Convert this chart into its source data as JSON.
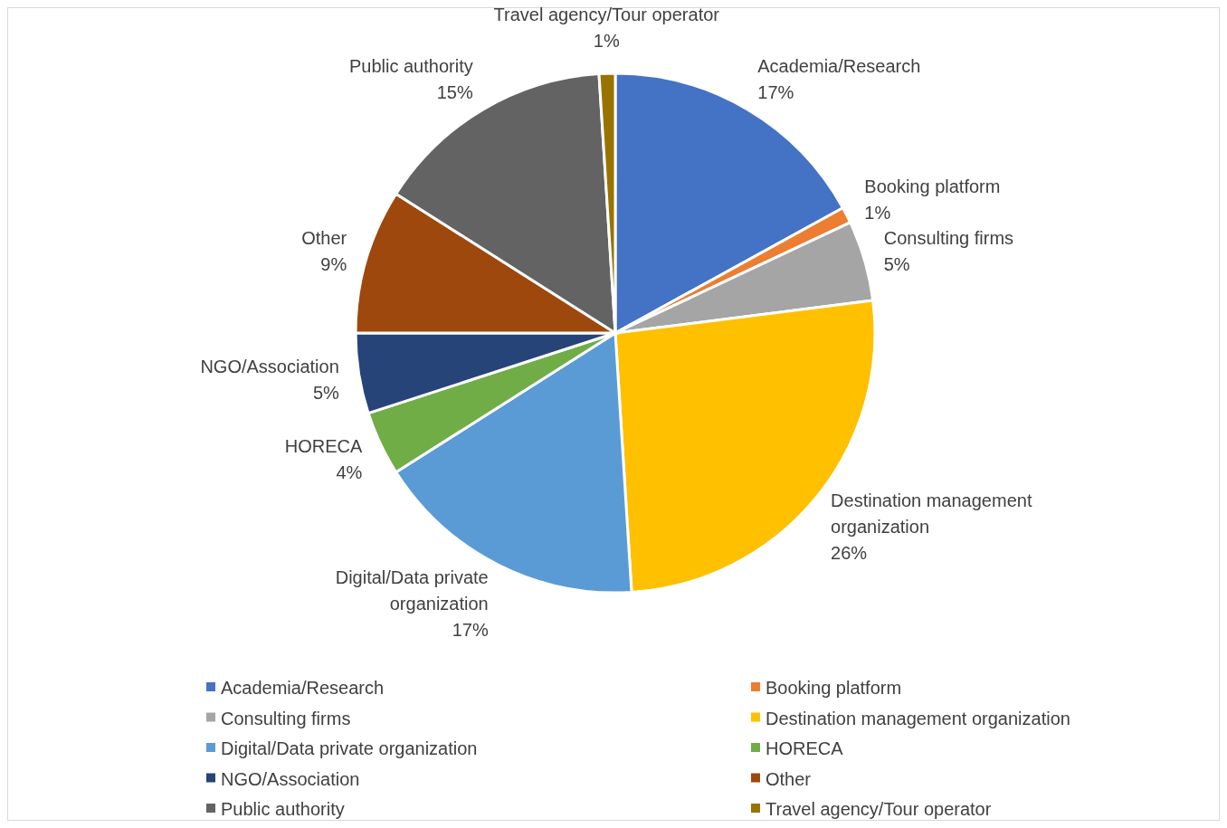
{
  "chart_data": {
    "type": "pie",
    "categories": [
      "Academia/Research",
      "Booking platform",
      "Consulting firms",
      "Destination management organization",
      "Digital/Data private organization",
      "HORECA",
      "NGO/Association",
      "Other",
      "Public authority",
      "Travel agency/Tour operator"
    ],
    "values": [
      17,
      1,
      5,
      26,
      17,
      4,
      5,
      9,
      15,
      1
    ],
    "value_labels": [
      "17%",
      "1%",
      "5%",
      "26%",
      "17%",
      "4%",
      "5%",
      "9%",
      "15%",
      "1%"
    ],
    "colors": [
      "#4472c4",
      "#ed7d31",
      "#a5a5a5",
      "#ffc000",
      "#5b9bd5",
      "#70ad47",
      "#264478",
      "#9e480e",
      "#636363",
      "#997300"
    ],
    "legend": "bottom"
  }
}
